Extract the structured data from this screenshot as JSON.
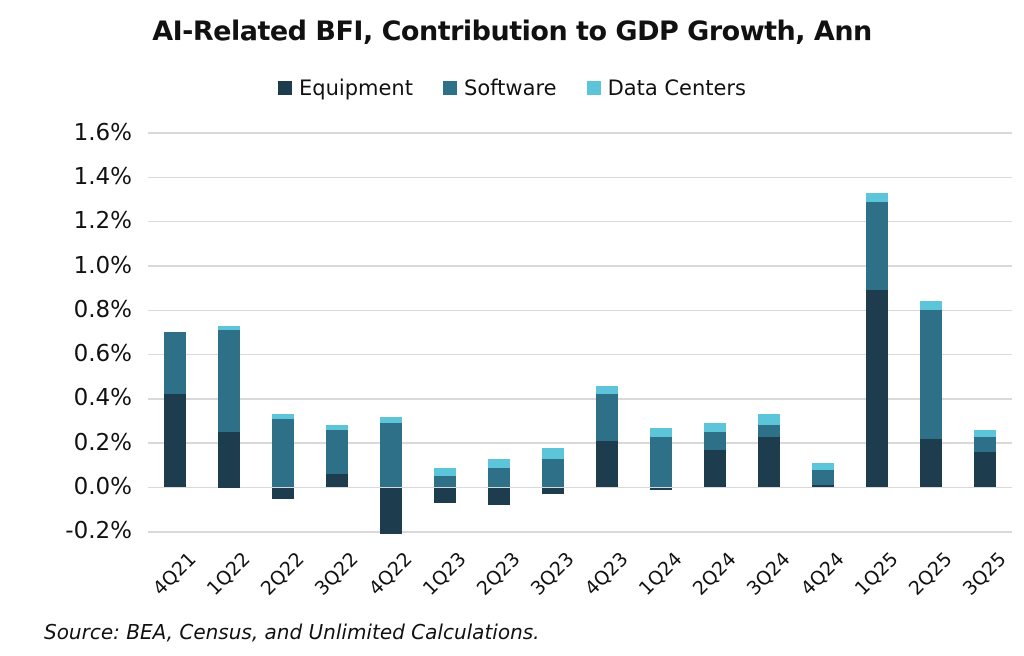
{
  "title": "AI-Related BFI, Contribution to GDP Growth, Ann",
  "source": "Source: BEA, Census, and Unlimited Calculations.",
  "colors": {
    "equipment": "#1d3c4e",
    "software": "#2f7089",
    "data_centers": "#5cc5d9",
    "gridline": "#d9d9d9",
    "text": "#111111"
  },
  "chart_data": {
    "type": "bar",
    "stacked": true,
    "title": "AI-Related BFI, Contribution to GDP Growth, Ann",
    "xlabel": "",
    "ylabel": "",
    "ylim": [
      -0.2,
      1.6
    ],
    "ytick_step": 0.2,
    "ytick_format": "0.0%",
    "grid": true,
    "legend_position": "top",
    "categories": [
      "4Q21",
      "1Q22",
      "2Q22",
      "3Q22",
      "4Q22",
      "1Q23",
      "2Q23",
      "3Q23",
      "4Q23",
      "1Q24",
      "2Q24",
      "3Q24",
      "4Q24",
      "1Q25",
      "2Q25",
      "3Q25"
    ],
    "series": [
      {
        "name": "Equipment",
        "color": "#1d3c4e",
        "values": [
          0.42,
          0.25,
          -0.05,
          0.06,
          -0.21,
          -0.07,
          -0.08,
          -0.03,
          0.21,
          -0.01,
          0.17,
          0.23,
          0.01,
          0.89,
          0.22,
          0.16
        ]
      },
      {
        "name": "Software",
        "color": "#2f7089",
        "values": [
          0.28,
          0.46,
          0.31,
          0.2,
          0.29,
          0.05,
          0.09,
          0.13,
          0.21,
          0.23,
          0.08,
          0.05,
          0.07,
          0.4,
          0.58,
          0.07
        ]
      },
      {
        "name": "Data Centers",
        "color": "#5cc5d9",
        "values": [
          0.0,
          0.02,
          0.02,
          0.02,
          0.03,
          0.04,
          0.04,
          0.05,
          0.04,
          0.04,
          0.04,
          0.05,
          0.03,
          0.04,
          0.04,
          0.03
        ]
      }
    ]
  }
}
